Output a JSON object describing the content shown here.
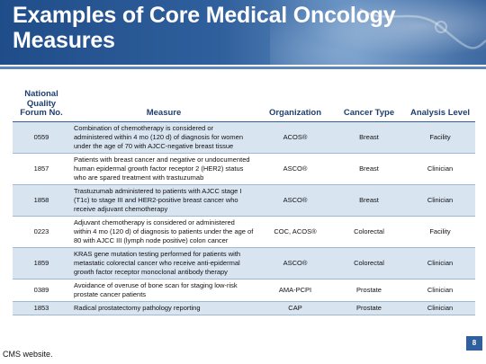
{
  "slide": {
    "title": "Examples of Core Medical Oncology Measures",
    "footer": "CMS website.",
    "page_number": "8"
  },
  "table": {
    "headers": {
      "forum_no": "National Quality Forum No.",
      "measure": "Measure",
      "organization": "Organization",
      "cancer_type": "Cancer Type",
      "analysis_level": "Analysis Level"
    },
    "rows": [
      {
        "forum_no": "0559",
        "measure": "Combination of chemotherapy is considered or administered within 4 mo (120 d) of diagnosis for women under the age of 70 with AJCC-negative breast tissue",
        "organization": "ACOS®",
        "cancer_type": "Breast",
        "analysis_level": "Facility"
      },
      {
        "forum_no": "1857",
        "measure": "Patients with breast cancer and negative or undocumented human epidermal growth factor receptor 2 (HER2) status who are spared treatment with trastuzumab",
        "organization": "ASCO®",
        "cancer_type": "Breast",
        "analysis_level": "Clinician"
      },
      {
        "forum_no": "1858",
        "measure": "Trastuzumab administered to patients with AJCC stage I (T1c) to stage III and HER2-positive breast cancer who receive adjuvant chemotherapy",
        "organization": "ASCO®",
        "cancer_type": "Breast",
        "analysis_level": "Clinician"
      },
      {
        "forum_no": "0223",
        "measure": "Adjuvant chemotherapy is considered or administered within 4 mo (120 d) of diagnosis to patients under the age of 80 with AJCC III (lymph node positive) colon cancer",
        "organization": "COC, ACOS®",
        "cancer_type": "Colorectal",
        "analysis_level": "Facility"
      },
      {
        "forum_no": "1859",
        "measure": "KRAS gene mutation testing performed for patients with metastatic colorectal cancer who receive anti-epidermal growth factor receptor monoclonal antibody therapy",
        "organization": "ASCO®",
        "cancer_type": "Colorectal",
        "analysis_level": "Clinician"
      },
      {
        "forum_no": "0389",
        "measure": "Avoidance of overuse of bone scan for staging low-risk prostate cancer patients",
        "organization": "AMA-PCPI",
        "cancer_type": "Prostate",
        "analysis_level": "Clinician"
      },
      {
        "forum_no": "1853",
        "measure": "Radical prostatectomy pathology reporting",
        "organization": "CAP",
        "cancer_type": "Prostate",
        "analysis_level": "Clinician"
      }
    ]
  }
}
